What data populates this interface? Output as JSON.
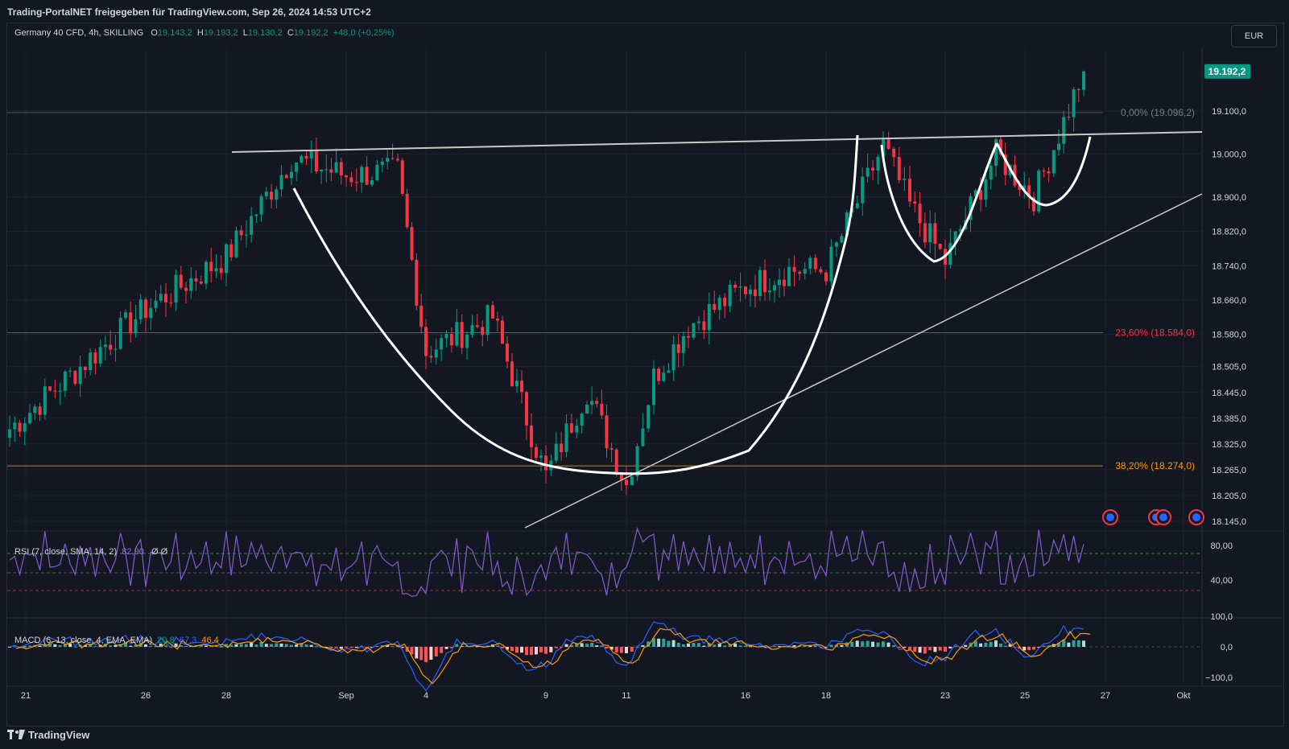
{
  "header": {
    "title": "Trading-PortalNET freigegeben für TradingView.com, Sep 26, 2024 14:53 UTC+2"
  },
  "legend": {
    "symbol": "Germany 40 CFD, 4h, SKILLING",
    "o_label": "O",
    "o": "19.143,2",
    "h_label": "H",
    "h": "19.193,2",
    "l_label": "L",
    "l": "19.130,2",
    "c_label": "C",
    "c": "19.192,2",
    "change": "+48,0 (+0,25%)"
  },
  "currency_button": "EUR",
  "price_tag": "19.192,2",
  "fib": [
    {
      "label": "0,00% (19.096,2)",
      "price": 19096.2,
      "color": "#787b86"
    },
    {
      "label": "23,60% (18.584,0)",
      "price": 18584.0,
      "color": "#f23645"
    },
    {
      "label": "38,20% (18.274,0)",
      "price": 18274.0,
      "color": "#ff9800"
    }
  ],
  "rsi": {
    "label": "RSI (7, close, SMA, 14, 2)",
    "value": "82,90",
    "extra": "Ø  Ø",
    "ticks": [
      "80,00",
      "40,00"
    ]
  },
  "macd": {
    "label": "MACD (6, 13, close, 4, EMA, EMA)",
    "v1": "20,8",
    "v2": "67,3",
    "v3": "46,4",
    "ticks": [
      "100,0",
      "0,0",
      "−100,0"
    ]
  },
  "footer": {
    "brand": "TradingView"
  },
  "chart_data": {
    "type": "candlestick",
    "timeframe": "4h",
    "y_ticks": [
      19100.0,
      19000.0,
      18900.0,
      18820.0,
      18740.0,
      18660.0,
      18580.0,
      18505.0,
      18445.0,
      18385.0,
      18325.0,
      18265.0,
      18205.0,
      18145.0
    ],
    "y_tick_labels": [
      "19.100,0",
      "19.000,0",
      "18.900,0",
      "18.820,0",
      "18.740,0",
      "18.660,0",
      "18.580,0",
      "18.505,0",
      "18.445,0",
      "18.385,0",
      "18.325,0",
      "18.265,0",
      "18.205,0",
      "18.145,0"
    ],
    "x_labels": [
      "21",
      "26",
      "28",
      "Sep",
      "4",
      "9",
      "11",
      "16",
      "18",
      "23",
      "25",
      "27",
      "Okt"
    ],
    "last_close": 19192.2,
    "close_path": [
      {
        "day": "21",
        "close": 18360
      },
      {
        "day": "26",
        "close": 18640
      },
      {
        "day": "28",
        "close": 18760
      },
      {
        "day": "29",
        "close": 18990
      },
      {
        "day": "Sep",
        "close": 18950
      },
      {
        "day": "3",
        "close": 18960
      },
      {
        "day": "4",
        "close": 18540
      },
      {
        "day": "6",
        "close": 18620
      },
      {
        "day": "9",
        "close": 18250
      },
      {
        "day": "10",
        "close": 18450
      },
      {
        "day": "11",
        "close": 18230
      },
      {
        "day": "12",
        "close": 18480
      },
      {
        "day": "13",
        "close": 18600
      },
      {
        "day": "16",
        "close": 18690
      },
      {
        "day": "17",
        "close": 18730
      },
      {
        "day": "18",
        "close": 18730
      },
      {
        "day": "19",
        "close": 19020
      },
      {
        "day": "20",
        "close": 18880
      },
      {
        "day": "23",
        "close": 18750
      },
      {
        "day": "24",
        "close": 19000
      },
      {
        "day": "25",
        "close": 18900
      },
      {
        "day": "26",
        "close": 19192.2
      }
    ]
  }
}
